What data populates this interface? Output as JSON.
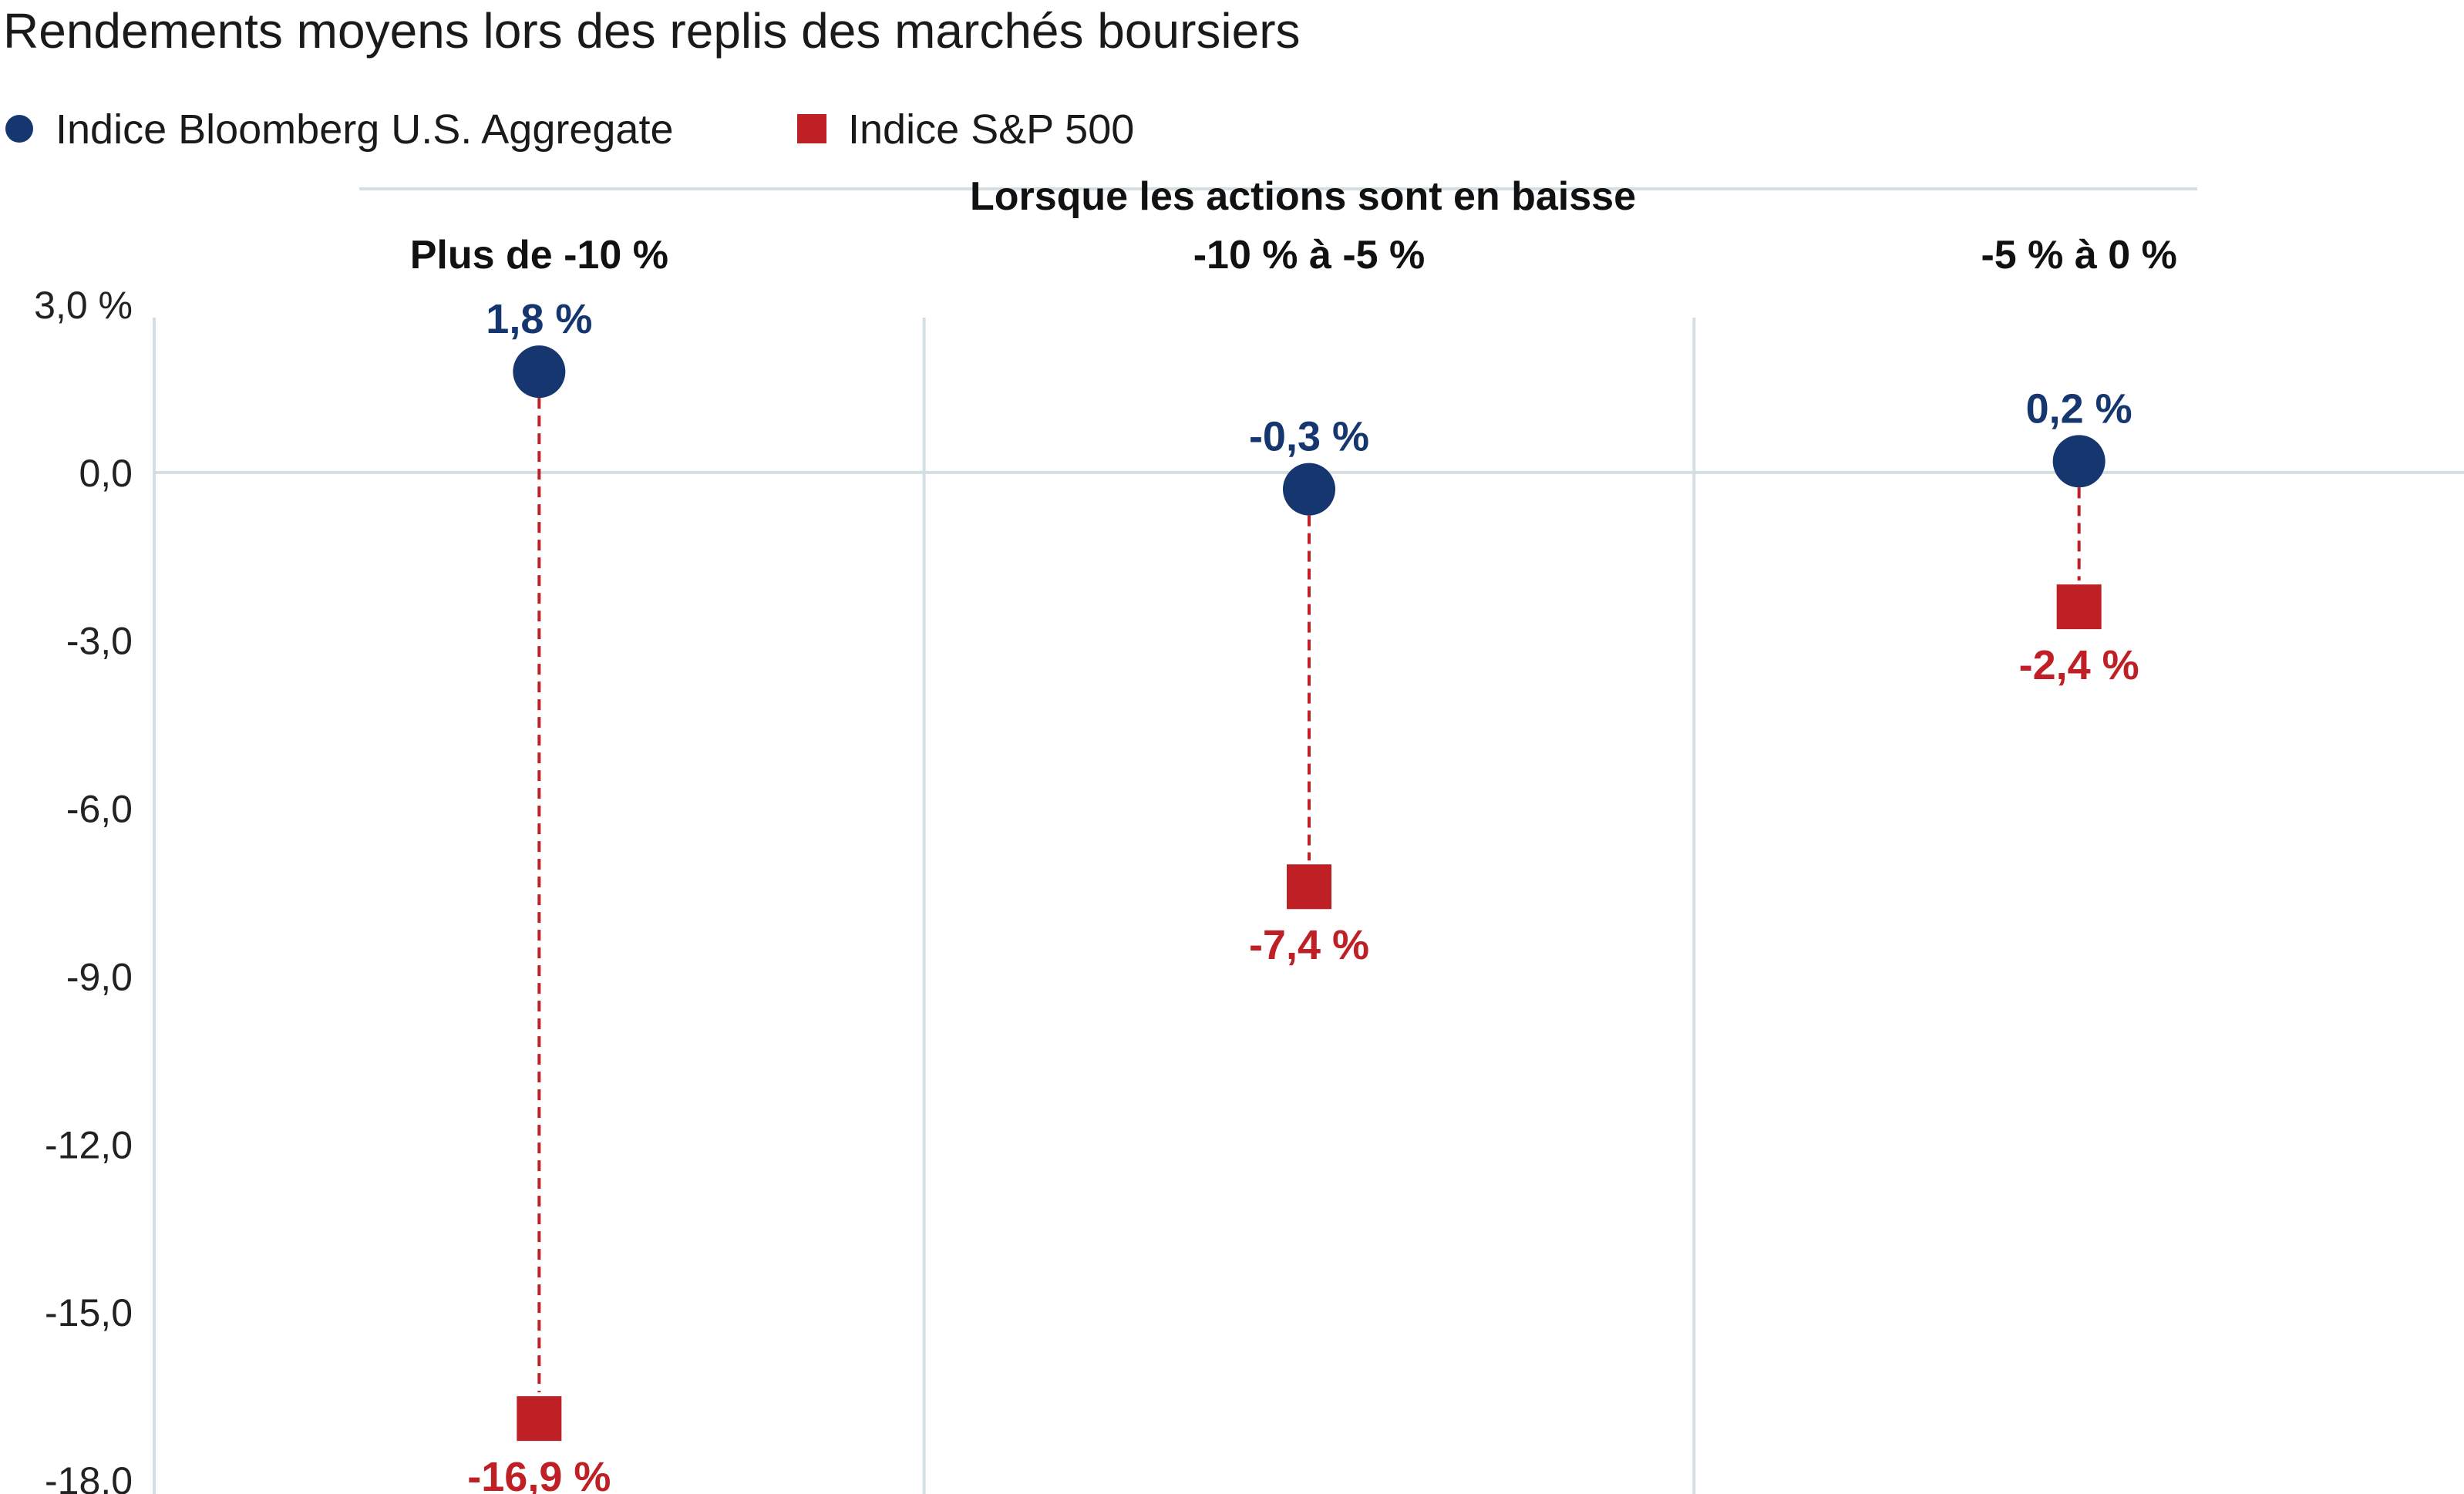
{
  "chart_data": {
    "type": "scatter",
    "title": "Rendements moyens lors des replis des marchés boursiers",
    "group_header": "Lorsque les actions sont en baisse",
    "categories": [
      "Plus de -10 %",
      "-10 % à -5 %",
      "-5 % à 0 %"
    ],
    "series": [
      {
        "name": "Indice Bloomberg U.S. Aggregate",
        "marker": "circle",
        "color": "#15366e",
        "values": [
          1.8,
          -0.3,
          0.2
        ],
        "labels": [
          "1,8 %",
          "-0,3 %",
          "0,2 %"
        ]
      },
      {
        "name": "Indice S&P 500",
        "marker": "square",
        "color": "#bf2026",
        "values": [
          -16.9,
          -7.4,
          -2.4
        ],
        "labels": [
          "-16,9 %",
          "-7,4 %",
          "-2,4 %"
        ]
      }
    ],
    "connector_color": "#bf2026",
    "ylim": [
      -18,
      3
    ],
    "yticks": [
      3,
      0,
      -3,
      -6,
      -9,
      -12,
      -15,
      -18
    ],
    "ytick_labels": [
      "3,0 %",
      "0,0",
      "-3,0",
      "-6,0",
      "-9,0",
      "-12,0",
      "-15,0",
      "-18,0"
    ],
    "grid": true,
    "legend_position": "top-left",
    "gridline_color": "#d4dfe3"
  }
}
